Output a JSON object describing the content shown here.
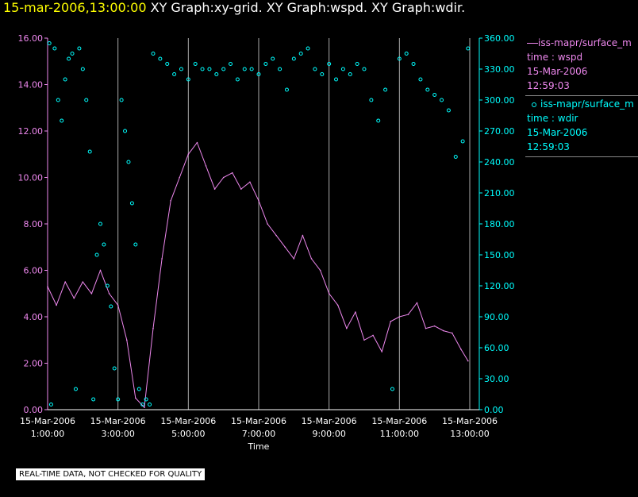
{
  "title": {
    "timestamp": "15-mar-2006,13:00:00",
    "rest": " XY Graph:xy-grid.  XY Graph:wspd.  XY Graph:wdir."
  },
  "colors": {
    "wspd": "#ee88ee",
    "wdir": "#00ffff",
    "grid": "#aaaaaa",
    "axis_left": "#ee88ee",
    "axis_right": "#00ffff",
    "text": "#ffffff"
  },
  "legend": [
    {
      "name": "iss-mapr/surface_m",
      "var": "time : wspd",
      "date": "15-Mar-2006",
      "time": "12:59:03",
      "icon": "line-marker"
    },
    {
      "name": "iss-mapr/surface_m",
      "var": "time : wdir",
      "date": "15-Mar-2006",
      "time": "12:59:03",
      "icon": "circle-marker"
    }
  ],
  "quality_note": "REAL-TIME DATA, NOT CHECKED FOR QUALITY",
  "chart_data": {
    "type": "line",
    "xlabel": "Time",
    "x_ticks": [
      {
        "hour": 1,
        "date": "15-Mar-2006",
        "time": "1:00:00"
      },
      {
        "hour": 3,
        "date": "15-Mar-2006",
        "time": "3:00:00"
      },
      {
        "hour": 5,
        "date": "15-Mar-2006",
        "time": "5:00:00"
      },
      {
        "hour": 7,
        "date": "15-Mar-2006",
        "time": "7:00:00"
      },
      {
        "hour": 9,
        "date": "15-Mar-2006",
        "time": "9:00:00"
      },
      {
        "hour": 11,
        "date": "15-Mar-2006",
        "time": "11:00:00"
      },
      {
        "hour": 13,
        "date": "15-Mar-2006",
        "time": "13:00:00"
      }
    ],
    "xlim_hours": [
      1,
      13
    ],
    "y_left_ticks": [
      "0.00",
      "2.00",
      "4.00",
      "6.00",
      "8.00",
      "10.00",
      "12.00",
      "14.00",
      "16.00"
    ],
    "y_left_lim": [
      0,
      16
    ],
    "y_right_ticks": [
      "0.00",
      "30.00",
      "60.00",
      "90.00",
      "120.00",
      "150.00",
      "180.00",
      "210.00",
      "240.00",
      "270.00",
      "300.00",
      "330.00",
      "360.00"
    ],
    "y_right_lim": [
      0,
      360
    ],
    "grid": "vertical",
    "series": [
      {
        "name": "iss-mapr/surface_m time : wspd",
        "style": "line",
        "axis": "left",
        "x_hours": [
          1.0,
          1.25,
          1.5,
          1.75,
          2.0,
          2.25,
          2.5,
          2.75,
          3.0,
          3.25,
          3.5,
          3.75,
          4.0,
          4.25,
          4.5,
          4.75,
          5.0,
          5.25,
          5.5,
          5.75,
          6.0,
          6.25,
          6.5,
          6.75,
          7.0,
          7.25,
          7.5,
          7.75,
          8.0,
          8.25,
          8.5,
          8.75,
          9.0,
          9.25,
          9.5,
          9.75,
          10.0,
          10.25,
          10.5,
          10.75,
          11.0,
          11.25,
          11.5,
          11.75,
          12.0,
          12.25,
          12.5,
          12.75,
          12.95
        ],
        "values": [
          5.3,
          4.5,
          5.5,
          4.8,
          5.5,
          5.0,
          6.0,
          5.0,
          4.5,
          3.0,
          0.5,
          0.1,
          3.5,
          6.5,
          9.0,
          10.0,
          11.0,
          11.5,
          10.5,
          9.5,
          10.0,
          10.2,
          9.5,
          9.8,
          9.0,
          8.0,
          7.5,
          7.0,
          6.5,
          7.5,
          6.5,
          6.0,
          5.0,
          4.5,
          3.5,
          4.2,
          3.0,
          3.2,
          2.5,
          3.8,
          4.0,
          4.1,
          4.6,
          3.5,
          3.6,
          3.4,
          3.3,
          2.6,
          2.1
        ]
      },
      {
        "name": "iss-mapr/surface_m time : wdir",
        "style": "markers",
        "axis": "right",
        "x_hours": [
          1.05,
          1.1,
          1.2,
          1.3,
          1.4,
          1.5,
          1.6,
          1.7,
          1.8,
          1.9,
          2.0,
          2.1,
          2.2,
          2.3,
          2.4,
          2.5,
          2.6,
          2.7,
          2.8,
          2.9,
          3.0,
          3.1,
          3.2,
          3.3,
          3.4,
          3.5,
          3.6,
          3.7,
          3.8,
          3.9,
          4.0,
          4.2,
          4.4,
          4.6,
          4.8,
          5.0,
          5.2,
          5.4,
          5.6,
          5.8,
          6.0,
          6.2,
          6.4,
          6.6,
          6.8,
          7.0,
          7.2,
          7.4,
          7.6,
          7.8,
          8.0,
          8.2,
          8.4,
          8.6,
          8.8,
          9.0,
          9.2,
          9.4,
          9.6,
          9.8,
          10.0,
          10.2,
          10.4,
          10.6,
          10.8,
          11.0,
          11.2,
          11.4,
          11.6,
          11.8,
          12.0,
          12.2,
          12.4,
          12.6,
          12.8,
          12.95
        ],
        "values": [
          355,
          5,
          350,
          300,
          280,
          320,
          340,
          345,
          20,
          350,
          330,
          300,
          250,
          10,
          150,
          180,
          160,
          120,
          100,
          40,
          10,
          300,
          270,
          240,
          200,
          160,
          20,
          5,
          10,
          5,
          345,
          340,
          335,
          325,
          330,
          320,
          335,
          330,
          330,
          325,
          330,
          335,
          320,
          330,
          330,
          325,
          335,
          340,
          330,
          310,
          340,
          345,
          350,
          330,
          325,
          335,
          320,
          330,
          325,
          335,
          330,
          300,
          280,
          310,
          20,
          340,
          345,
          335,
          320,
          310,
          305,
          300,
          290,
          245,
          260,
          350
        ]
      }
    ]
  }
}
